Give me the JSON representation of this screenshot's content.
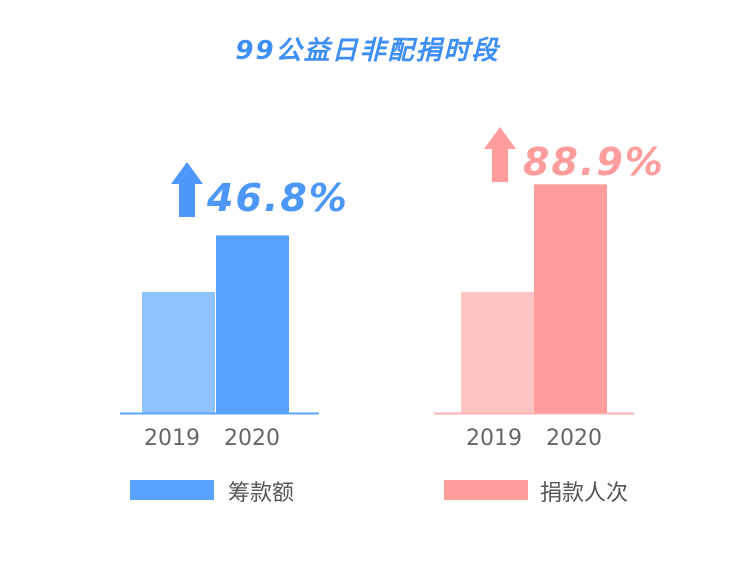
{
  "title": "99公益日非配捐时段",
  "chart_data": [
    {
      "type": "bar",
      "categories": [
        "2019",
        "2020"
      ],
      "series": [
        {
          "name": "筹款额",
          "values": [
            1.0,
            1.468
          ]
        }
      ],
      "change_label": "46.8%",
      "colors": {
        "bar_2019": "#8ec3ff",
        "bar_2020": "#58a3ff",
        "axis": "#5aa6ff",
        "text": "#4d97f8"
      }
    },
    {
      "type": "bar",
      "categories": [
        "2019",
        "2020"
      ],
      "series": [
        {
          "name": "捐款人次",
          "values": [
            1.0,
            1.889
          ]
        }
      ],
      "change_label": "88.9%",
      "colors": {
        "bar_2019": "#ffc4c4",
        "bar_2020": "#ff9c9c",
        "axis": "#ffb0b0",
        "text": "#ff9c9c"
      }
    }
  ]
}
